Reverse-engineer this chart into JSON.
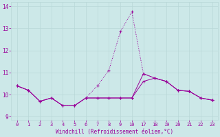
{
  "xlabel": "Windchill (Refroidissement éolien,°C)",
  "background_color": "#cce8e8",
  "line_color": "#990099",
  "grid_color": "#b8d8d8",
  "xtick_labels": [
    "0",
    "1",
    "2",
    "3",
    "4",
    "5",
    "6",
    "7",
    "8",
    "9",
    "10",
    "",
    "",
    "",
    "",
    "",
    "",
    "17",
    "18",
    "19",
    "20",
    "21",
    "22",
    "23"
  ],
  "n_points": 18,
  "series1_y": [
    10.4,
    10.2,
    9.7,
    9.85,
    9.5,
    9.5,
    9.85,
    9.85,
    9.85,
    9.85,
    9.85,
    10.6,
    10.75,
    10.6,
    10.2,
    10.15,
    9.85,
    9.75
  ],
  "series2_y": [
    10.4,
    10.2,
    9.7,
    9.85,
    9.5,
    9.5,
    9.85,
    10.4,
    11.1,
    12.85,
    13.75,
    10.95,
    10.75,
    10.6,
    10.2,
    10.15,
    9.85,
    9.75
  ],
  "series3_y": [
    10.4,
    10.2,
    9.7,
    9.85,
    9.5,
    9.5,
    9.85,
    9.85,
    9.85,
    9.85,
    9.85,
    10.95,
    10.75,
    10.6,
    10.2,
    10.15,
    9.85,
    9.75
  ],
  "ylim": [
    8.85,
    14.2
  ],
  "yticks": [
    9,
    10,
    11,
    12,
    13,
    14
  ]
}
